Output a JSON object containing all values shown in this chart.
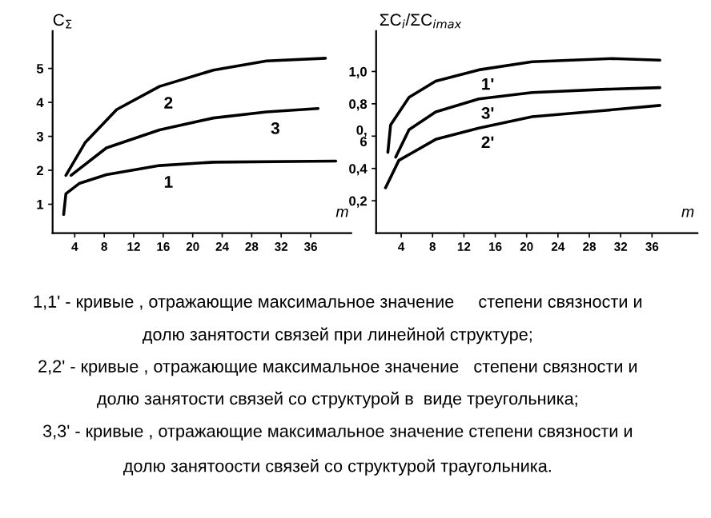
{
  "chart_data": [
    {
      "type": "line",
      "ylabel": "C$_{Σ}$",
      "xlabel": "m",
      "xlim": [
        1,
        41.5
      ],
      "ylim": [
        0.15,
        6.1
      ],
      "xticks": [
        4,
        8,
        12,
        16,
        20,
        24,
        28,
        32,
        36
      ],
      "yticks": [
        1,
        2,
        3,
        4,
        5
      ],
      "marker": "none",
      "line_style": "solid",
      "legend": false,
      "grid": false,
      "series": [
        {
          "name": "2",
          "color": "#000000",
          "x": [
            2.8,
            5.4,
            9.7,
            15.5,
            22.8,
            30.0,
            38.0
          ],
          "values": [
            1.85,
            2.81,
            3.79,
            4.47,
            4.95,
            5.22,
            5.3
          ]
        },
        {
          "name": "3",
          "color": "#000000",
          "x": [
            3.5,
            8.3,
            15.5,
            22.8,
            30.0,
            37.0
          ],
          "values": [
            1.85,
            2.66,
            3.19,
            3.54,
            3.72,
            3.82
          ]
        },
        {
          "name": "1",
          "color": "#000000",
          "x": [
            2.5,
            2.8,
            4.6,
            8.3,
            15.5,
            22.8,
            39.4
          ],
          "values": [
            0.7,
            1.31,
            1.61,
            1.87,
            2.14,
            2.24,
            2.27
          ]
        }
      ],
      "annotations": [
        "1,1' - кривые , отражающие максимальное значение     степени связности и",
        "долю занятости связей при линейной структуре;",
        "2,2' - кривые , отражающие максимальное значение   степени связности и",
        "долю занятости связей со структурой в  виде треугольника;",
        "3,3' - кривые , отражающие максимальное значение степени связности и",
        "долю занятоости связей со структурой траугольника."
      ]
    },
    {
      "type": "line",
      "ylabel": "ΣC$_{i}$/ΣC$_{imax}$",
      "xlabel": "m",
      "xlim": [
        0.8,
        41.8
      ],
      "ylim": [
        0,
        1.25
      ],
      "xticks": [
        4,
        8,
        12,
        16,
        20,
        24,
        28,
        32,
        36
      ],
      "yticks": [
        {
          "value": 0.2,
          "label": "0,2"
        },
        {
          "value": 0.4,
          "label": "0,4"
        },
        {
          "value": 0.6,
          "label": "0,\n6"
        },
        {
          "value": 0.8,
          "label": "0,8"
        },
        {
          "value": 1.0,
          "label": "1,0"
        }
      ],
      "marker": "none",
      "line_style": "solid",
      "legend": false,
      "grid": false,
      "series": [
        {
          "name": "1'",
          "color": "#000000",
          "x": [
            2.3,
            2.65,
            5.0,
            8.4,
            13.9,
            20.7,
            30.9,
            37.0
          ],
          "values": [
            0.5,
            0.67,
            0.84,
            0.94,
            1.01,
            1.06,
            1.08,
            1.07
          ]
        },
        {
          "name": "3'",
          "color": "#000000",
          "x": [
            3.3,
            5.0,
            8.4,
            13.9,
            20.7,
            30.2,
            37.0
          ],
          "values": [
            0.47,
            0.64,
            0.75,
            0.83,
            0.87,
            0.89,
            0.9
          ]
        },
        {
          "name": "2'",
          "color": "#000000",
          "x": [
            2.0,
            3.7,
            8.4,
            13.9,
            20.7,
            30.2,
            37.0
          ],
          "values": [
            0.28,
            0.45,
            0.58,
            0.65,
            0.72,
            0.76,
            0.79
          ]
        }
      ]
    }
  ]
}
